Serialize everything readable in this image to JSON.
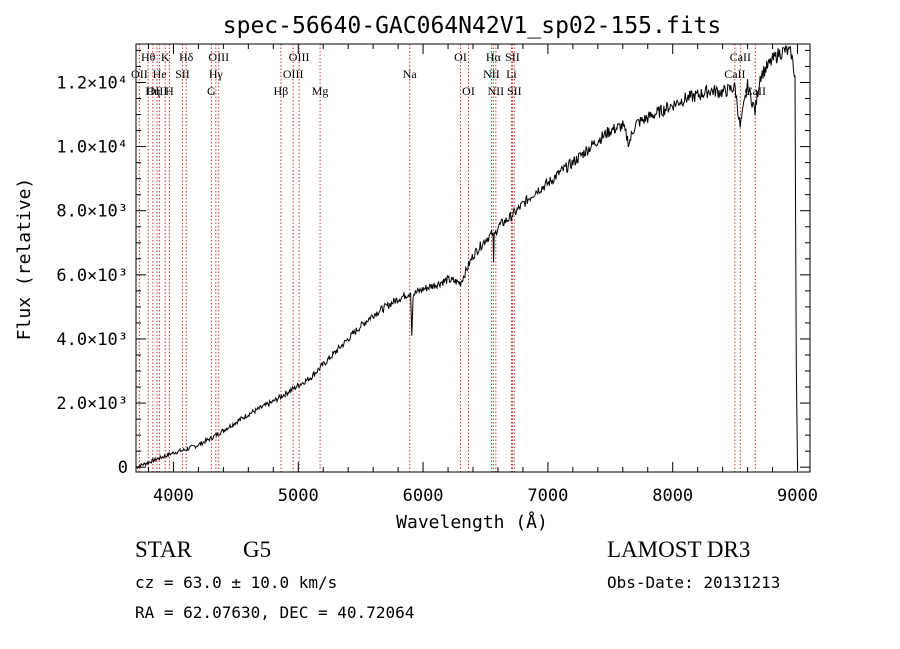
{
  "chart_data": {
    "type": "line",
    "title": "spec-56640-GAC064N42V1_sp02-155.fits",
    "xlabel": "Wavelength (Å)",
    "ylabel": "Flux (relative)",
    "xlim": [
      3700,
      9100
    ],
    "ylim": [
      -150,
      13200
    ],
    "x_ticks": [
      4000,
      5000,
      6000,
      7000,
      8000,
      9000
    ],
    "x_tick_labels": [
      "4000",
      "5000",
      "6000",
      "7000",
      "8000",
      "9000"
    ],
    "y_ticks": [
      0,
      2000,
      4000,
      6000,
      8000,
      10000,
      12000
    ],
    "y_tick_labels": [
      "0",
      "2.0×10³",
      "4.0×10³",
      "6.0×10³",
      "8.0×10³",
      "1.0×10⁴",
      "1.2×10⁴"
    ],
    "series": [
      {
        "name": "flux",
        "x": [
          3700,
          3800,
          3900,
          4000,
          4100,
          4200,
          4300,
          4400,
          4500,
          4600,
          4700,
          4800,
          4900,
          5000,
          5100,
          5200,
          5300,
          5400,
          5500,
          5600,
          5700,
          5800,
          5900,
          5910,
          5920,
          6000,
          6100,
          6200,
          6300,
          6400,
          6500,
          6560,
          6565,
          6570,
          6600,
          6700,
          6800,
          6900,
          7000,
          7100,
          7200,
          7300,
          7400,
          7500,
          7600,
          7650,
          7700,
          7800,
          7900,
          8000,
          8100,
          8200,
          8300,
          8400,
          8500,
          8540,
          8600,
          8660,
          8700,
          8800,
          8850,
          8900,
          8950,
          8980,
          8990,
          9000
        ],
        "y": [
          0,
          150,
          300,
          450,
          550,
          700,
          900,
          1150,
          1400,
          1650,
          1850,
          2050,
          2300,
          2550,
          2800,
          3200,
          3600,
          4000,
          4400,
          4750,
          5000,
          5250,
          5450,
          4100,
          5400,
          5550,
          5700,
          5850,
          5750,
          6600,
          7100,
          7300,
          6400,
          7200,
          7500,
          7800,
          8200,
          8600,
          8850,
          9200,
          9500,
          9850,
          10200,
          10500,
          10650,
          10100,
          10700,
          10900,
          11100,
          11300,
          11500,
          11600,
          11750,
          11700,
          11850,
          10600,
          11900,
          11100,
          12200,
          12700,
          12900,
          13000,
          12900,
          12200,
          3200,
          0
        ]
      }
    ],
    "lines": [
      {
        "name": "Hθ",
        "wavelength": 3798,
        "row": 0
      },
      {
        "name": "OII",
        "wavelength": 3727,
        "row": 1
      },
      {
        "name": "OIII",
        "wavelength": 3869,
        "row": 2
      },
      {
        "name": "He",
        "wavelength": 3889,
        "row": 1
      },
      {
        "name": "K",
        "wavelength": 3934,
        "row": 0
      },
      {
        "name": "Hη",
        "wavelength": 3835,
        "row": 2
      },
      {
        "name": "SII",
        "wavelength": 4072,
        "row": 1
      },
      {
        "name": "H",
        "wavelength": 3968,
        "row": 2
      },
      {
        "name": "Hδ",
        "wavelength": 4102,
        "row": 0
      },
      {
        "name": "OIII",
        "wavelength": 4363,
        "row": 0
      },
      {
        "name": "Hγ",
        "wavelength": 4340,
        "row": 1
      },
      {
        "name": "G",
        "wavelength": 4304,
        "row": 2
      },
      {
        "name": "OIII",
        "wavelength": 5007,
        "row": 0
      },
      {
        "name": "OIII",
        "wavelength": 4959,
        "row": 1
      },
      {
        "name": "Hβ",
        "wavelength": 4861,
        "row": 2
      },
      {
        "name": "Mg",
        "wavelength": 5175,
        "row": 2
      },
      {
        "name": "Na",
        "wavelength": 5893,
        "row": 1
      },
      {
        "name": "OI",
        "wavelength": 6300,
        "row": 0
      },
      {
        "name": "OI",
        "wavelength": 6364,
        "row": 2
      },
      {
        "name": "Hα",
        "wavelength": 6563,
        "row": 0
      },
      {
        "name": "SII",
        "wavelength": 6716,
        "row": 0
      },
      {
        "name": "NII",
        "wavelength": 6548,
        "row": 1
      },
      {
        "name": "Li",
        "wavelength": 6708,
        "row": 1
      },
      {
        "name": "NII",
        "wavelength": 6583,
        "row": 2
      },
      {
        "name": "SII",
        "wavelength": 6731,
        "row": 2
      },
      {
        "name": "CaII",
        "wavelength": 8542,
        "row": 0
      },
      {
        "name": "CaII",
        "wavelength": 8498,
        "row": 1
      },
      {
        "name": "CaII",
        "wavelength": 8662,
        "row": 2
      }
    ]
  },
  "info": {
    "class": "STAR",
    "subclass": "G5",
    "survey": "LAMOST DR3",
    "cz": "cz = 63.0 ± 10.0 km/s",
    "obs_date": "Obs-Date: 20131213",
    "coords": "RA =  62.07630, DEC =  40.72064"
  },
  "colors": {
    "line_marker": "#cc3333",
    "spectrum": "#000000",
    "axes": "#000000"
  }
}
